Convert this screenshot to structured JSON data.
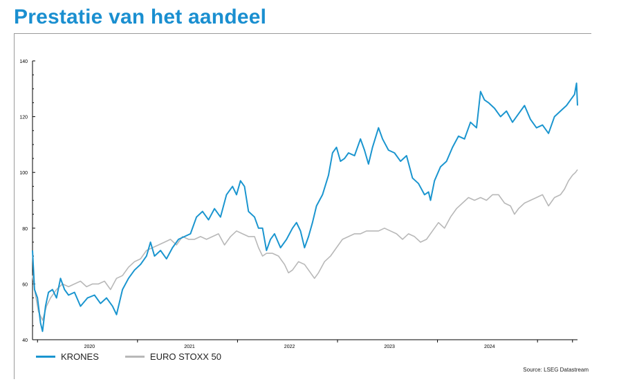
{
  "header": {
    "title": "Prestatie van het aandeel"
  },
  "chart_data": {
    "type": "line",
    "ylim": [
      40,
      140
    ],
    "yticks": [
      40,
      60,
      80,
      100,
      120,
      140
    ],
    "xlim": [
      2019.4,
      2024.85
    ],
    "xticks": [
      2020,
      2021,
      2022,
      2023,
      2024
    ],
    "grid": false,
    "legend": "bottom-left",
    "series": [
      {
        "name": "KRONES",
        "color": "#1a95cf",
        "points": [
          [
            2019.4,
            72
          ],
          [
            2019.42,
            58
          ],
          [
            2019.45,
            55
          ],
          [
            2019.48,
            46
          ],
          [
            2019.5,
            43
          ],
          [
            2019.53,
            52
          ],
          [
            2019.56,
            57
          ],
          [
            2019.6,
            58
          ],
          [
            2019.64,
            55
          ],
          [
            2019.68,
            62
          ],
          [
            2019.72,
            58
          ],
          [
            2019.76,
            56
          ],
          [
            2019.82,
            57
          ],
          [
            2019.88,
            52
          ],
          [
            2019.95,
            55
          ],
          [
            2020.02,
            56
          ],
          [
            2020.08,
            53
          ],
          [
            2020.14,
            55
          ],
          [
            2020.2,
            52
          ],
          [
            2020.24,
            49
          ],
          [
            2020.3,
            58
          ],
          [
            2020.36,
            62
          ],
          [
            2020.42,
            65
          ],
          [
            2020.48,
            67
          ],
          [
            2020.54,
            70
          ],
          [
            2020.58,
            75
          ],
          [
            2020.62,
            70
          ],
          [
            2020.68,
            72
          ],
          [
            2020.74,
            69
          ],
          [
            2020.8,
            73
          ],
          [
            2020.86,
            76
          ],
          [
            2020.92,
            77
          ],
          [
            2020.98,
            78
          ],
          [
            2021.04,
            84
          ],
          [
            2021.1,
            86
          ],
          [
            2021.16,
            83
          ],
          [
            2021.22,
            87
          ],
          [
            2021.28,
            84
          ],
          [
            2021.34,
            92
          ],
          [
            2021.4,
            95
          ],
          [
            2021.44,
            92
          ],
          [
            2021.48,
            97
          ],
          [
            2021.52,
            95
          ],
          [
            2021.56,
            86
          ],
          [
            2021.62,
            84
          ],
          [
            2021.66,
            80
          ],
          [
            2021.7,
            80
          ],
          [
            2021.74,
            72
          ],
          [
            2021.78,
            76
          ],
          [
            2021.82,
            78
          ],
          [
            2021.88,
            73
          ],
          [
            2021.94,
            76
          ],
          [
            2022.0,
            80
          ],
          [
            2022.04,
            82
          ],
          [
            2022.08,
            79
          ],
          [
            2022.12,
            73
          ],
          [
            2022.16,
            77
          ],
          [
            2022.2,
            82
          ],
          [
            2022.24,
            88
          ],
          [
            2022.3,
            92
          ],
          [
            2022.36,
            99
          ],
          [
            2022.4,
            107
          ],
          [
            2022.44,
            109
          ],
          [
            2022.48,
            104
          ],
          [
            2022.52,
            105
          ],
          [
            2022.56,
            107
          ],
          [
            2022.62,
            106
          ],
          [
            2022.68,
            112
          ],
          [
            2022.72,
            108
          ],
          [
            2022.76,
            103
          ],
          [
            2022.8,
            109
          ],
          [
            2022.86,
            116
          ],
          [
            2022.9,
            112
          ],
          [
            2022.96,
            108
          ],
          [
            2023.02,
            107
          ],
          [
            2023.08,
            104
          ],
          [
            2023.14,
            106
          ],
          [
            2023.2,
            98
          ],
          [
            2023.26,
            96
          ],
          [
            2023.32,
            92
          ],
          [
            2023.36,
            93
          ],
          [
            2023.38,
            90
          ],
          [
            2023.42,
            97
          ],
          [
            2023.48,
            102
          ],
          [
            2023.54,
            104
          ],
          [
            2023.6,
            109
          ],
          [
            2023.66,
            113
          ],
          [
            2023.72,
            112
          ],
          [
            2023.78,
            118
          ],
          [
            2023.84,
            116
          ],
          [
            2023.88,
            129
          ],
          [
            2023.92,
            126
          ],
          [
            2023.96,
            125
          ],
          [
            2024.02,
            123
          ],
          [
            2024.08,
            120
          ],
          [
            2024.14,
            122
          ],
          [
            2024.2,
            118
          ],
          [
            2024.26,
            121
          ],
          [
            2024.32,
            124
          ],
          [
            2024.38,
            119
          ],
          [
            2024.44,
            116
          ],
          [
            2024.5,
            117
          ],
          [
            2024.56,
            114
          ],
          [
            2024.62,
            120
          ],
          [
            2024.68,
            122
          ],
          [
            2024.74,
            124
          ],
          [
            2024.78,
            126
          ],
          [
            2024.82,
            128
          ],
          [
            2024.84,
            132
          ],
          [
            2024.85,
            124
          ]
        ]
      },
      {
        "name": "EURO STOXX 50",
        "color": "#b8b8b8",
        "points": [
          [
            2019.4,
            63
          ],
          [
            2019.43,
            56
          ],
          [
            2019.46,
            50
          ],
          [
            2019.5,
            47
          ],
          [
            2019.54,
            52
          ],
          [
            2019.58,
            55
          ],
          [
            2019.64,
            58
          ],
          [
            2019.7,
            60
          ],
          [
            2019.76,
            59
          ],
          [
            2019.82,
            60
          ],
          [
            2019.88,
            61
          ],
          [
            2019.94,
            59
          ],
          [
            2020.0,
            60
          ],
          [
            2020.06,
            60
          ],
          [
            2020.12,
            61
          ],
          [
            2020.18,
            58
          ],
          [
            2020.24,
            62
          ],
          [
            2020.3,
            63
          ],
          [
            2020.36,
            66
          ],
          [
            2020.42,
            68
          ],
          [
            2020.48,
            69
          ],
          [
            2020.54,
            72
          ],
          [
            2020.6,
            73
          ],
          [
            2020.66,
            74
          ],
          [
            2020.72,
            75
          ],
          [
            2020.78,
            76
          ],
          [
            2020.84,
            74
          ],
          [
            2020.9,
            77
          ],
          [
            2020.96,
            76
          ],
          [
            2021.02,
            76
          ],
          [
            2021.08,
            77
          ],
          [
            2021.14,
            76
          ],
          [
            2021.2,
            77
          ],
          [
            2021.26,
            78
          ],
          [
            2021.32,
            74
          ],
          [
            2021.38,
            77
          ],
          [
            2021.44,
            79
          ],
          [
            2021.5,
            78
          ],
          [
            2021.56,
            77
          ],
          [
            2021.62,
            77
          ],
          [
            2021.66,
            73
          ],
          [
            2021.7,
            70
          ],
          [
            2021.74,
            71
          ],
          [
            2021.8,
            71
          ],
          [
            2021.86,
            70
          ],
          [
            2021.92,
            67
          ],
          [
            2021.96,
            64
          ],
          [
            2022.0,
            65
          ],
          [
            2022.06,
            68
          ],
          [
            2022.12,
            67
          ],
          [
            2022.18,
            64
          ],
          [
            2022.22,
            62
          ],
          [
            2022.26,
            64
          ],
          [
            2022.32,
            68
          ],
          [
            2022.38,
            70
          ],
          [
            2022.44,
            73
          ],
          [
            2022.5,
            76
          ],
          [
            2022.56,
            77
          ],
          [
            2022.62,
            78
          ],
          [
            2022.68,
            78
          ],
          [
            2022.74,
            79
          ],
          [
            2022.8,
            79
          ],
          [
            2022.86,
            79
          ],
          [
            2022.92,
            80
          ],
          [
            2022.98,
            79
          ],
          [
            2023.04,
            78
          ],
          [
            2023.1,
            76
          ],
          [
            2023.16,
            78
          ],
          [
            2023.22,
            77
          ],
          [
            2023.28,
            75
          ],
          [
            2023.34,
            76
          ],
          [
            2023.4,
            79
          ],
          [
            2023.46,
            82
          ],
          [
            2023.52,
            80
          ],
          [
            2023.58,
            84
          ],
          [
            2023.64,
            87
          ],
          [
            2023.7,
            89
          ],
          [
            2023.76,
            91
          ],
          [
            2023.82,
            90
          ],
          [
            2023.88,
            91
          ],
          [
            2023.94,
            90
          ],
          [
            2024.0,
            92
          ],
          [
            2024.06,
            92
          ],
          [
            2024.12,
            89
          ],
          [
            2024.18,
            88
          ],
          [
            2024.22,
            85
          ],
          [
            2024.26,
            87
          ],
          [
            2024.32,
            89
          ],
          [
            2024.38,
            90
          ],
          [
            2024.44,
            91
          ],
          [
            2024.5,
            92
          ],
          [
            2024.56,
            88
          ],
          [
            2024.62,
            91
          ],
          [
            2024.68,
            92
          ],
          [
            2024.72,
            94
          ],
          [
            2024.76,
            97
          ],
          [
            2024.8,
            99
          ],
          [
            2024.83,
            100
          ],
          [
            2024.85,
            101
          ]
        ]
      }
    ],
    "source": "Source: LSEG Datastream"
  }
}
